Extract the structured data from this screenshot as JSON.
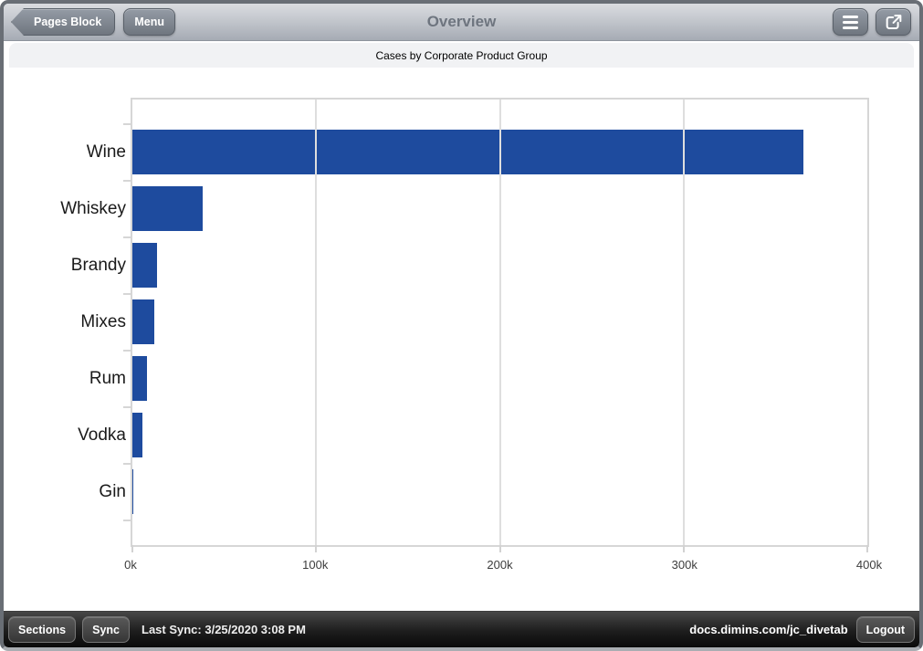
{
  "topbar": {
    "back_button": "Pages Block",
    "menu_button": "Menu",
    "title": "Overview",
    "icons": {
      "nav": "hamburger-icon",
      "share": "share-icon",
      "back": "back-arrow-shape"
    }
  },
  "chart_data": {
    "type": "bar",
    "orientation": "horizontal",
    "title": "Cases by Corporate Product Group",
    "categories": [
      "Wine",
      "Whiskey",
      "Brandy",
      "Mixes",
      "Rum",
      "Vodka",
      "Gin"
    ],
    "values": [
      365000,
      38500,
      13300,
      12000,
      8000,
      5300,
      700
    ],
    "xlabel": "",
    "ylabel": "",
    "xlim": [
      0,
      400000
    ],
    "x_tick_labels": [
      "0k",
      "100k",
      "200k",
      "300k",
      "400k"
    ],
    "grid": true,
    "legend": "none",
    "bar_color": "#1e4b9e"
  },
  "bottombar": {
    "sections_button": "Sections",
    "sync_button": "Sync",
    "last_sync": "Last Sync: 3/25/2020 3:08 PM",
    "server": "docs.dimins.com/jc_divetab",
    "logout_button": "Logout"
  },
  "colors": {
    "bar_blue": "#1e4b9e",
    "topbar_text": "#6e757f",
    "grid_gray": "#d6d6d6"
  }
}
